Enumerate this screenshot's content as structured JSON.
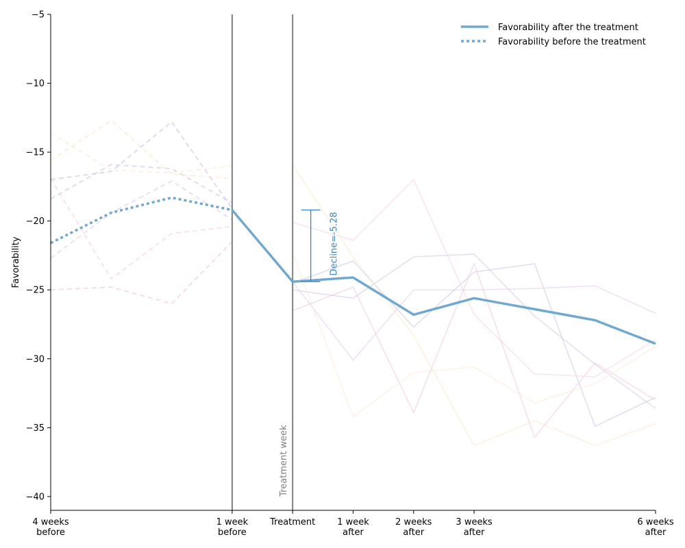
{
  "chart_data": {
    "type": "line",
    "xlabel": "",
    "ylabel": "Favorability",
    "ylim": [
      -41,
      -5
    ],
    "yticks": [
      -5,
      -10,
      -15,
      -20,
      -25,
      -30,
      -35,
      -40
    ],
    "ytick_labels": [
      "−5",
      "−10",
      "−15",
      "−20",
      "−25",
      "−30",
      "−35",
      "−40"
    ],
    "xlim": [
      -4,
      6
    ],
    "xticks": [
      {
        "x": -4,
        "lines": [
          "4 weeks",
          "before"
        ]
      },
      {
        "x": -1,
        "lines": [
          "1 week",
          "before"
        ]
      },
      {
        "x": 0,
        "lines": [
          "Treatment",
          ""
        ]
      },
      {
        "x": 1,
        "lines": [
          "1 week",
          "after"
        ]
      },
      {
        "x": 2,
        "lines": [
          "2 weeks",
          "after"
        ]
      },
      {
        "x": 3,
        "lines": [
          "3 weeks",
          "after"
        ]
      },
      {
        "x": 6,
        "lines": [
          "6 weeks",
          "after"
        ]
      }
    ],
    "vertical_lines_x": [
      -1,
      0
    ],
    "treatment_label": "Treatment week",
    "grid": false,
    "legend_position": "top-right",
    "legend": [
      {
        "label": "Favorability after the treatment",
        "style": "solid"
      },
      {
        "label": "Favorability before the treatment",
        "style": "dotted"
      }
    ],
    "main_color": "#6fa8d0",
    "annotation": {
      "text": "Decline=-5.28",
      "color": "#3c87bd",
      "x": 0.3,
      "y_top": -19.2,
      "y_bottom": -24.4
    },
    "series": [
      {
        "x": [
          -4,
          -3,
          -2,
          -1
        ],
        "values": [
          -21.6,
          -19.4,
          -18.3,
          -19.2
        ],
        "style": "dotted",
        "color": "#6fa8d0"
      },
      {
        "x": [
          -1,
          0,
          1,
          2,
          3,
          4,
          5,
          6
        ],
        "values": [
          -19.2,
          -24.4,
          -24.1,
          -26.8,
          -25.6,
          -26.4,
          -27.2,
          -28.9
        ],
        "style": "solid",
        "color": "#6fa8d0"
      }
    ],
    "background_series": [
      {
        "color": "#c8c3e3",
        "before": [
          -17.0,
          -16.4,
          -12.8,
          -19.1
        ],
        "after": [
          -24.5,
          -22.9,
          -27.7,
          -23.7,
          -23.1,
          -34.9,
          -32.8
        ]
      },
      {
        "color": "#d6c2e6",
        "before": [
          -18.4,
          -15.9,
          -16.2,
          -18.7
        ],
        "after": [
          -25.0,
          -25.6,
          -22.6,
          -22.4,
          -26.9,
          -30.4,
          -33.6
        ]
      },
      {
        "color": "#e3c8ec",
        "before": [
          -22.7,
          -19.4,
          -17.1,
          -19.9
        ],
        "after": [
          -24.4,
          -30.1,
          -25.0,
          -25.0,
          -24.9,
          -24.7,
          -26.7
        ]
      },
      {
        "color": "#f2c4dc",
        "before": [
          -25.0,
          -24.8,
          -26.0,
          -21.5
        ],
        "after": [
          -26.5,
          -24.8,
          -33.9,
          -23.1,
          -35.7,
          -30.3,
          -33.0
        ]
      },
      {
        "color": "#f6cde0",
        "before": [
          -16.9,
          -24.2,
          -20.9,
          -20.4
        ],
        "after": [
          -20.1,
          -21.4,
          -17.0,
          -26.8,
          -31.1,
          -31.3,
          -28.6
        ]
      },
      {
        "color": "#fbe5c4",
        "before": [
          -15.6,
          -12.7,
          -16.6,
          -16.9
        ],
        "after": [
          -15.9,
          -22.6,
          -28.3,
          -36.3,
          -34.5,
          -36.3,
          -34.7
        ]
      },
      {
        "color": "#fde7d2",
        "before": [
          -13.6,
          -16.3,
          -16.5,
          -16.0
        ],
        "after": [
          -22.3,
          -34.2,
          -31.0,
          -30.6,
          -33.2,
          -31.8,
          -29.1
        ]
      }
    ]
  }
}
